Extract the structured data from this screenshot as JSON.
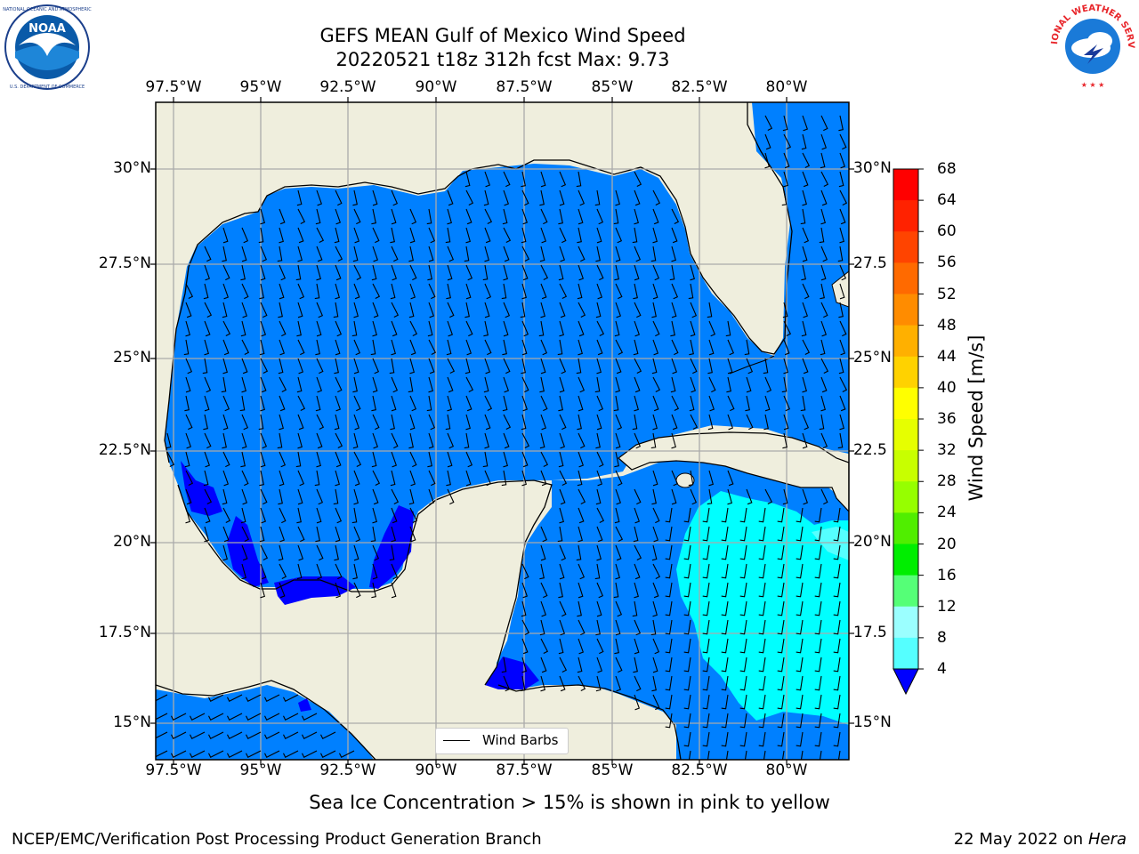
{
  "header": {
    "title": "GEFS MEAN Gulf of Mexico Wind Speed",
    "subtitle": "20220521 t18z 312h fcst   Max: 9.73"
  },
  "logos": {
    "left": {
      "name": "noaa-logo",
      "text": "NOAA",
      "ring_text": "NATIONAL OCEANIC AND ATMOSPHERIC ADMINISTRATION · U.S. DEPARTMENT OF COMMERCE",
      "color": "#0a5aa8"
    },
    "right": {
      "name": "nws-logo",
      "ring_text": "NATIONAL WEATHER SERVICE",
      "color": "#e8262b"
    }
  },
  "map": {
    "lon_labels": [
      "97.5°W",
      "95°W",
      "92.5°W",
      "90°W",
      "87.5°W",
      "85°W",
      "82.5°W",
      "80°W"
    ],
    "lat_labels": [
      "30°N",
      "27.5°N",
      "25°N",
      "22.5°N",
      "20°N",
      "17.5°N",
      "15°N"
    ],
    "lat_labels_right": [
      "30°N",
      "27.5",
      "25°N",
      "22.5",
      "20°N",
      "17.5",
      "15°N"
    ],
    "land_color": "#efeedd",
    "ocean_color_4_8": "#0080ff",
    "ocean_color_8_12": "#00ffff",
    "ocean_color_below_4": "#0000ff"
  },
  "legend": {
    "label": "Wind Barbs"
  },
  "colorbar": {
    "label": "Wind Speed [m/s]",
    "ticks": [
      "68",
      "64",
      "60",
      "56",
      "52",
      "48",
      "44",
      "40",
      "36",
      "32",
      "28",
      "24",
      "20",
      "16",
      "12",
      "8",
      "4"
    ],
    "colors": [
      "#ff0000",
      "#ff2200",
      "#ff4400",
      "#ff6a00",
      "#ff8c00",
      "#ffb000",
      "#ffd200",
      "#ffff00",
      "#e6ff00",
      "#c8ff00",
      "#96ff00",
      "#50ee00",
      "#00ee00",
      "#55ff77",
      "#9bffff",
      "#55ffff",
      "#00ffff",
      "#0080ff"
    ],
    "extend_color": "#0000ff"
  },
  "notes": {
    "sea_ice": "Sea Ice Concentration > 15% is shown in pink to yellow",
    "org": "NCEP/EMC/Verification Post Processing Product Generation Branch",
    "date": "22 May 2022 on",
    "machine": "Hera"
  }
}
